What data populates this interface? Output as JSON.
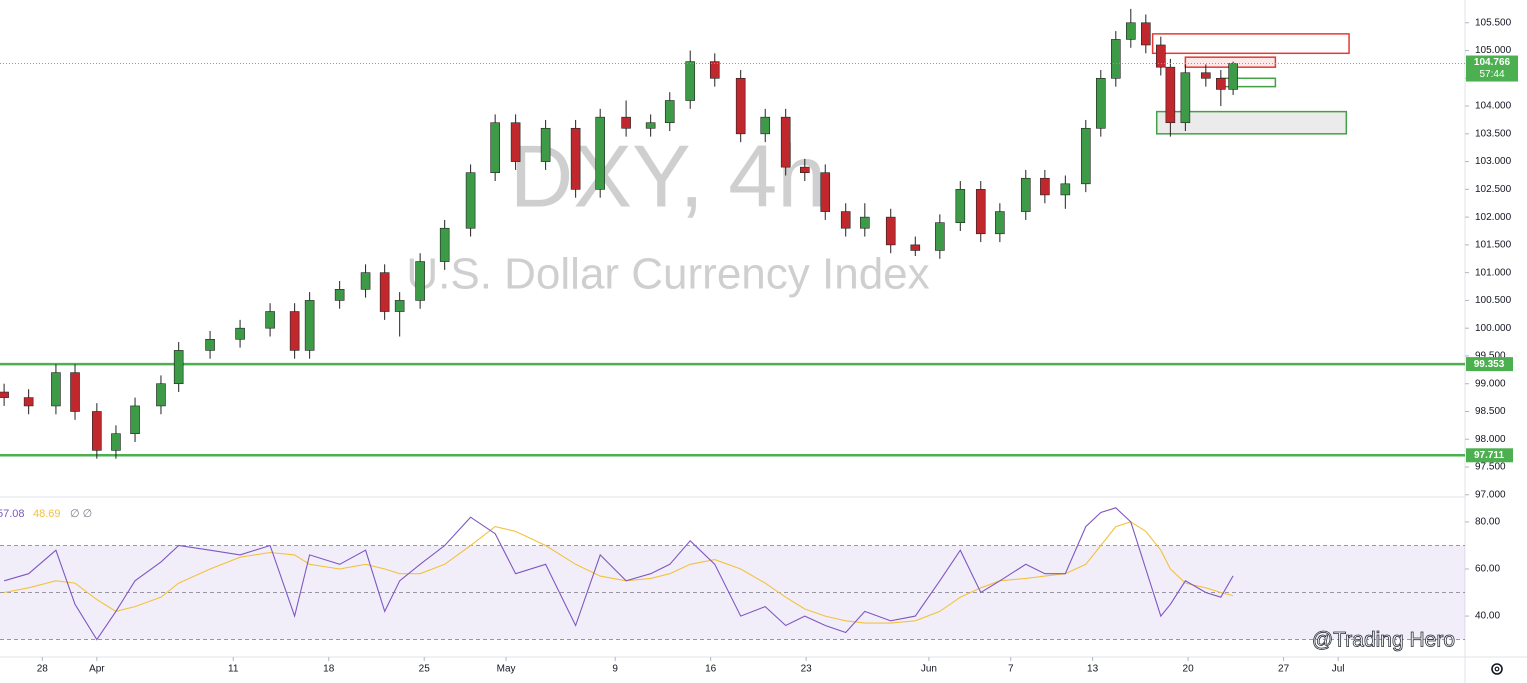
{
  "chart_data": [
    {
      "type": "candlestick",
      "title": "DXY, 4h",
      "subtitle": "U.S. Dollar Currency Index",
      "x": [
        -2.8,
        -1,
        1,
        2.4,
        4,
        5.4,
        6.8,
        8.7,
        10,
        12.3,
        14.5,
        16.7,
        18.5,
        19.6,
        21.8,
        23.7,
        25.1,
        26.2,
        27.7,
        29.5,
        31.4,
        33.2,
        34.7,
        36.9,
        39.1,
        40.9,
        42.8,
        44.6,
        46,
        47.5,
        49.3,
        51.2,
        53,
        54.5,
        55.9,
        57.4,
        58.9,
        60.3,
        62.2,
        64,
        65.8,
        67.3,
        68.8,
        70.2,
        72.1,
        73.5,
        75,
        76.5,
        77.6,
        78.7,
        79.8,
        80.9,
        82,
        82.7,
        83.8,
        85.3,
        86.4,
        87.3
      ],
      "open": [
        98.85,
        98.75,
        98.6,
        99.2,
        98.5,
        97.8,
        98.1,
        98.6,
        99.0,
        99.6,
        99.8,
        100.0,
        100.3,
        99.6,
        100.5,
        100.7,
        101.0,
        100.3,
        100.5,
        101.2,
        101.8,
        102.8,
        103.7,
        103.0,
        103.6,
        102.5,
        103.8,
        103.6,
        103.7,
        104.1,
        104.8,
        104.5,
        103.5,
        103.8,
        102.9,
        102.8,
        102.1,
        101.8,
        102.0,
        101.5,
        101.4,
        101.9,
        102.5,
        101.7,
        102.1,
        102.7,
        102.4,
        102.6,
        103.6,
        104.5,
        105.2,
        105.5,
        105.1,
        104.7,
        103.7,
        104.6,
        104.5,
        104.3
      ],
      "high": [
        99.0,
        98.9,
        99.35,
        99.35,
        98.65,
        98.25,
        98.75,
        99.15,
        99.75,
        99.95,
        100.15,
        100.45,
        100.45,
        100.65,
        100.85,
        101.15,
        101.15,
        100.65,
        101.35,
        101.95,
        102.95,
        103.85,
        103.85,
        103.75,
        103.75,
        103.95,
        104.1,
        103.85,
        104.25,
        105.0,
        104.95,
        104.65,
        103.95,
        103.95,
        103.05,
        102.95,
        102.25,
        102.25,
        102.15,
        101.65,
        102.05,
        102.65,
        102.65,
        102.25,
        102.85,
        102.85,
        102.75,
        103.75,
        104.65,
        105.35,
        105.75,
        105.65,
        105.25,
        104.85,
        104.75,
        104.75,
        104.65,
        104.8
      ],
      "low": [
        98.6,
        98.45,
        98.45,
        98.35,
        97.65,
        97.65,
        97.95,
        98.45,
        98.85,
        99.45,
        99.65,
        99.85,
        99.45,
        99.45,
        100.35,
        100.55,
        100.15,
        99.85,
        100.35,
        101.05,
        101.65,
        102.65,
        102.85,
        102.85,
        102.35,
        102.35,
        103.45,
        103.45,
        103.55,
        103.95,
        104.35,
        103.35,
        103.35,
        102.75,
        102.65,
        101.95,
        101.65,
        101.65,
        101.35,
        101.3,
        101.25,
        101.75,
        101.55,
        101.55,
        101.95,
        102.25,
        102.15,
        102.45,
        103.45,
        104.35,
        105.05,
        104.95,
        104.55,
        103.45,
        103.55,
        104.35,
        104.0,
        104.2
      ],
      "close": [
        98.75,
        98.6,
        99.2,
        98.5,
        97.8,
        98.1,
        98.6,
        99.0,
        99.6,
        99.8,
        100.0,
        100.3,
        99.6,
        100.5,
        100.7,
        101.0,
        100.3,
        100.5,
        101.2,
        101.8,
        102.8,
        103.7,
        103.0,
        103.6,
        102.5,
        103.8,
        103.6,
        103.7,
        104.1,
        104.8,
        104.5,
        103.5,
        103.8,
        102.9,
        102.8,
        102.1,
        101.8,
        102.0,
        101.5,
        101.4,
        101.9,
        102.5,
        101.7,
        102.1,
        102.7,
        102.4,
        102.6,
        103.6,
        104.5,
        105.2,
        105.5,
        105.1,
        104.7,
        103.7,
        104.6,
        104.5,
        104.3,
        104.766
      ],
      "up_color": "#3d9a47",
      "down_color": "#c0282d",
      "countdown": "57:44",
      "last_color": "#4caf50",
      "xlim": [
        -3.1,
        104.3
      ],
      "xticks": [
        {
          "value": 0,
          "label": "28"
        },
        {
          "value": 4,
          "label": "Apr"
        },
        {
          "value": 14,
          "label": "11"
        },
        {
          "value": 21,
          "label": "18"
        },
        {
          "value": 28,
          "label": "25"
        },
        {
          "value": 34,
          "label": "May"
        },
        {
          "value": 42,
          "label": "9"
        },
        {
          "value": 49,
          "label": "16"
        },
        {
          "value": 56,
          "label": "23"
        },
        {
          "value": 65,
          "label": "Jun"
        },
        {
          "value": 71,
          "label": "7"
        },
        {
          "value": 77,
          "label": "13"
        },
        {
          "value": 84,
          "label": "20"
        },
        {
          "value": 91,
          "label": "27"
        },
        {
          "value": 95,
          "label": "Jul"
        }
      ],
      "ylim": [
        96.96,
        105.91
      ],
      "yticks": [
        {
          "value": 97,
          "label": "97.000"
        },
        {
          "value": 97.5,
          "label": "97.500"
        },
        {
          "value": 98,
          "label": "98.000"
        },
        {
          "value": 98.5,
          "label": "98.500"
        },
        {
          "value": 99,
          "label": "99.000"
        },
        {
          "value": 99.5,
          "label": "99.500"
        },
        {
          "value": 100,
          "label": "100.000"
        },
        {
          "value": 100.5,
          "label": "100.500"
        },
        {
          "value": 101,
          "label": "101.000"
        },
        {
          "value": 101.5,
          "label": "101.500"
        },
        {
          "value": 102,
          "label": "102.000"
        },
        {
          "value": 102.5,
          "label": "102.500"
        },
        {
          "value": 103,
          "label": "103.000"
        },
        {
          "value": 103.5,
          "label": "103.500"
        },
        {
          "value": 104,
          "label": "104.000"
        },
        {
          "value": 104.5,
          "label": "104.500"
        },
        {
          "value": 105,
          "label": "105.000"
        },
        {
          "value": 105.5,
          "label": "105.500"
        }
      ],
      "hlines": [
        {
          "value": 99.353,
          "color": "#4caf50"
        },
        {
          "value": 97.711,
          "color": "#4caf50"
        }
      ],
      "zones": [
        {
          "x": [
            81.4,
            95.8
          ],
          "y": [
            104.95,
            105.3
          ],
          "stroke": "#e53935",
          "fill": "#ffffff"
        },
        {
          "x": [
            83.8,
            90.4
          ],
          "y": [
            104.7,
            104.88
          ],
          "stroke": "#e53935",
          "fill": "#fbe3e3"
        },
        {
          "x": [
            86.4,
            90.4
          ],
          "y": [
            104.35,
            104.5
          ],
          "stroke": "#43a047",
          "fill": "#ffffff"
        },
        {
          "x": [
            81.7,
            95.6
          ],
          "y": [
            103.5,
            103.9
          ],
          "stroke": "#43a047",
          "fill": "#e6e6e6"
        }
      ],
      "watermark": "@Trading Hero"
    },
    {
      "type": "line",
      "legend_extra": "∅ ∅",
      "series": [
        {
          "color": "#7e57c2",
          "values": [
            55,
            58,
            68,
            45,
            30,
            42,
            55,
            63,
            70,
            68,
            66,
            70,
            40,
            66,
            62,
            68,
            42,
            55,
            62,
            70,
            82,
            75,
            58,
            62,
            36,
            66,
            55,
            58,
            62,
            72,
            62,
            40,
            44,
            36,
            40,
            36,
            33,
            42,
            38,
            40,
            55,
            68,
            50,
            55,
            62,
            58,
            58,
            78,
            84,
            86,
            80,
            60,
            40,
            45,
            55,
            50,
            48,
            57.08
          ]
        },
        {
          "color": "#f2c23f",
          "values": [
            50,
            52,
            55,
            54,
            47,
            42,
            44,
            48,
            54,
            60,
            65,
            67,
            66,
            62,
            60,
            62,
            60,
            58,
            58,
            62,
            70,
            78,
            76,
            70,
            62,
            57,
            55,
            56,
            58,
            62,
            64,
            60,
            54,
            48,
            43,
            40,
            38,
            37,
            37,
            38,
            42,
            48,
            52,
            55,
            56,
            57,
            58,
            62,
            70,
            78,
            80,
            76,
            68,
            60,
            54,
            52,
            50,
            48.69
          ]
        }
      ],
      "band": [
        30,
        70
      ],
      "midline": 50,
      "ylim": [
        22.6,
        90.6
      ],
      "yticks": [
        {
          "value": 40,
          "label": "40.00"
        },
        {
          "value": 60,
          "label": "60.00"
        },
        {
          "value": 80,
          "label": "80.00"
        }
      ]
    }
  ]
}
